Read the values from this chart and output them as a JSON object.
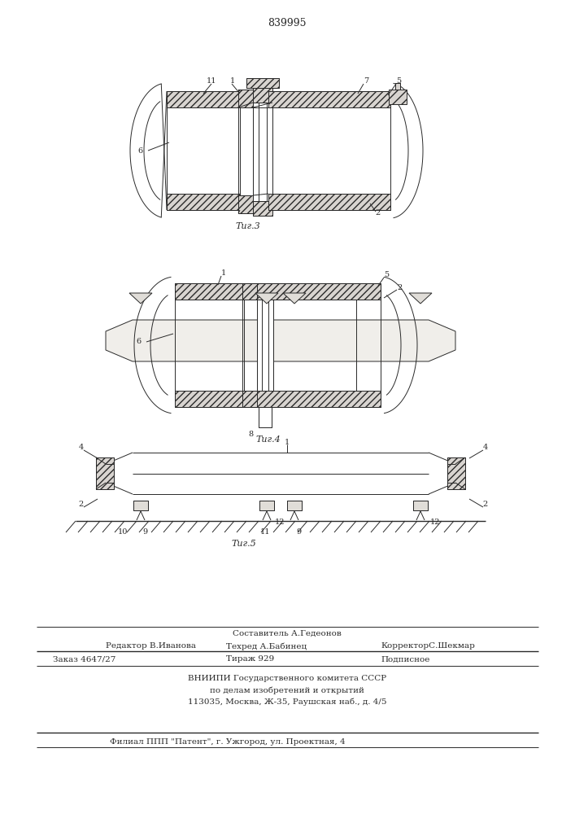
{
  "bg_color": "#ffffff",
  "line_color": "#2a2a2a",
  "hatch_color": "#2a2a2a",
  "patent_number": "839995",
  "fig3_label": "Τиг.3",
  "fig4_label": "Τиг.4",
  "fig5_label": "Τиг.5",
  "footer_sestavitel": "Составитель А.Гедеонов",
  "footer_redaktor": "Редактор В.Иванова",
  "footer_tehred": "Техред А.Бабинец",
  "footer_korrektor": "КорректорС.Шекмар",
  "footer_zakaz": "Заказ 4647/27",
  "footer_tirazh": "Тираж 929",
  "footer_podpisnoe": "Подписное",
  "footer_vniipи": "ВНИИПИ Государственного комитета СССР",
  "footer_po_delam": "по делам изобретений и открытий",
  "footer_address": "113035, Москва, Ж-35, Раушская наб., д. 4/5",
  "footer_filial": "Филиал ППП \"Патент\", г. Ужгород, ул. Проектная, 4"
}
